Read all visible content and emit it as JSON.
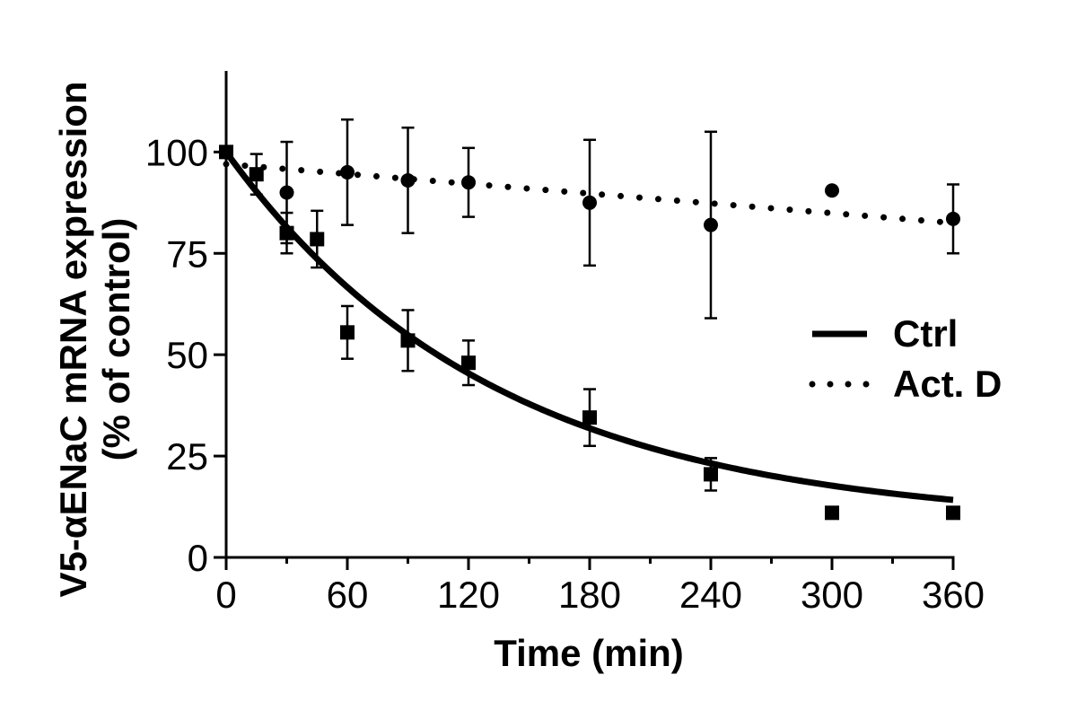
{
  "chart_data": {
    "type": "scatter",
    "xlabel": "Time (min)",
    "ylabel_line1": "V5-αENaC mRNA expression",
    "ylabel_line2": "(% of control)",
    "xlim": [
      0,
      360
    ],
    "ylim": [
      0,
      120
    ],
    "x_ticks": [
      0,
      60,
      120,
      180,
      240,
      300,
      360
    ],
    "x_minor_step": 30,
    "y_ticks": [
      0,
      25,
      50,
      75,
      100
    ],
    "series": [
      {
        "name": "Ctrl",
        "marker": "square",
        "line_style": "solid",
        "fit": {
          "model": "exponential_decay",
          "start": 100,
          "plateau": 8,
          "k": 0.0075,
          "x_range": [
            0,
            360
          ]
        },
        "points": [
          {
            "x": 0,
            "y": 100,
            "err": 0
          },
          {
            "x": 15,
            "y": 94.5,
            "err": 5
          },
          {
            "x": 30,
            "y": 80,
            "err": 5
          },
          {
            "x": 45,
            "y": 78.5,
            "err": 7
          },
          {
            "x": 60,
            "y": 55.5,
            "err": 6.5
          },
          {
            "x": 90,
            "y": 53.5,
            "err": 7.5
          },
          {
            "x": 120,
            "y": 48,
            "err": 5.5
          },
          {
            "x": 180,
            "y": 34.5,
            "err": 7
          },
          {
            "x": 240,
            "y": 20.5,
            "err": 4
          },
          {
            "x": 300,
            "y": 11,
            "err": 0
          },
          {
            "x": 360,
            "y": 11,
            "err": 0
          }
        ]
      },
      {
        "name": "Act. D",
        "marker": "circle",
        "line_style": "dotted",
        "fit": {
          "model": "linear",
          "start": 97,
          "end": 82.5,
          "x_range": [
            0,
            360
          ]
        },
        "points": [
          {
            "x": 0,
            "y": 100,
            "err": 0
          },
          {
            "x": 30,
            "y": 90,
            "err": 12.5
          },
          {
            "x": 60,
            "y": 95,
            "err": 13
          },
          {
            "x": 90,
            "y": 93,
            "err": 13
          },
          {
            "x": 120,
            "y": 92.5,
            "err": 8.5
          },
          {
            "x": 180,
            "y": 87.5,
            "err": 15.5
          },
          {
            "x": 240,
            "y": 82,
            "err": 23
          },
          {
            "x": 300,
            "y": 90.5,
            "err": 0
          },
          {
            "x": 360,
            "y": 83.5,
            "err": 8.5
          }
        ]
      }
    ],
    "legend": {
      "placement": "right",
      "entries": [
        {
          "label": "Ctrl",
          "line_style": "solid"
        },
        {
          "label": "Act. D",
          "line_style": "dotted"
        }
      ]
    }
  }
}
